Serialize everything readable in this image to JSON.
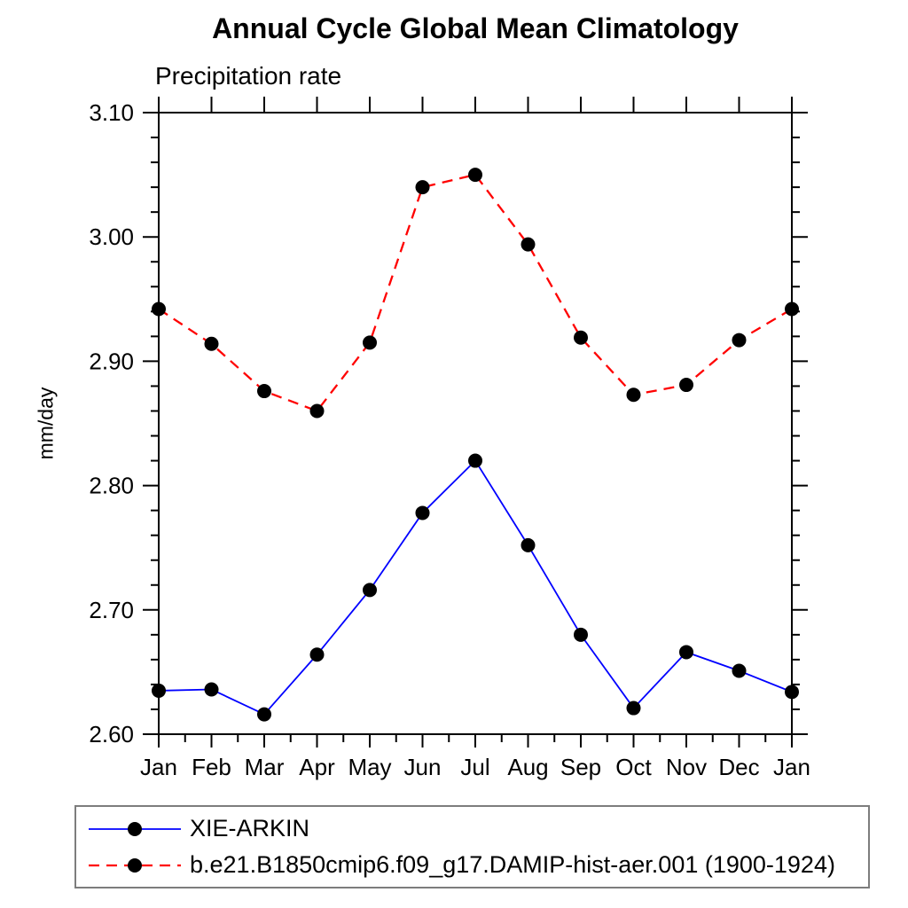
{
  "page": {
    "background": "#ffffff",
    "text_color": "#000000"
  },
  "chart_data": {
    "type": "line",
    "title": "Annual Cycle Global Mean Climatology",
    "subtitle": "Precipitation rate",
    "ylabel": "mm/day",
    "xlabel": "",
    "categories": [
      "Jan",
      "Feb",
      "Mar",
      "Apr",
      "May",
      "Jun",
      "Jul",
      "Aug",
      "Sep",
      "Oct",
      "Nov",
      "Dec",
      "Jan"
    ],
    "ylim": [
      2.6,
      3.1
    ],
    "ytick_labels": [
      "2.60",
      "2.70",
      "2.80",
      "2.90",
      "3.00",
      "3.10"
    ],
    "ytick_major_step": 0.1,
    "ytick_minor_step": 0.02,
    "xtick_minor": "half-month",
    "grid": false,
    "frame_color": "#000000",
    "legend_position": "bottom",
    "legend_border_color": "#7d7d7d",
    "series": [
      {
        "name": "XIE-ARKIN",
        "color": "#0000ff",
        "line_style": "solid",
        "marker": "filled-circle",
        "marker_color": "#000000",
        "values": [
          2.635,
          2.636,
          2.616,
          2.664,
          2.716,
          2.778,
          2.82,
          2.752,
          2.68,
          2.621,
          2.666,
          2.651,
          2.634
        ]
      },
      {
        "name": "b.e21.B1850cmip6.f09_g17.DAMIP-hist-aer.001 (1900-1924)",
        "color": "#ff0000",
        "line_style": "dashed",
        "marker": "filled-circle",
        "marker_color": "#000000",
        "values": [
          2.942,
          2.914,
          2.876,
          2.86,
          2.915,
          3.04,
          3.05,
          2.994,
          2.919,
          2.873,
          2.881,
          2.917,
          2.942
        ]
      }
    ]
  }
}
